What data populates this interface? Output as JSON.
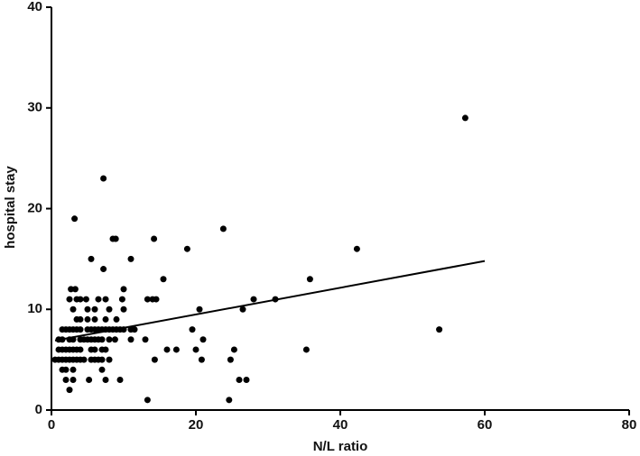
{
  "chart_data": {
    "type": "scatter",
    "xlabel": "N/L ratio",
    "ylabel": "hospital stay",
    "xlim": [
      0,
      80
    ],
    "xticks": [
      0,
      20,
      40,
      60,
      80
    ],
    "ylim": [
      0,
      40
    ],
    "yticks": [
      0,
      10,
      20,
      30,
      40
    ],
    "grid": false,
    "color": "#000000",
    "x": [
      57.3,
      7.2,
      3.2,
      23.8,
      8.5,
      8.9,
      14.2,
      18.8,
      42.3,
      5.5,
      11,
      7.2,
      15.5,
      35.8,
      10,
      31,
      28,
      13.3,
      14,
      14.5,
      20.5,
      26.5,
      19.5,
      53.7,
      21,
      13,
      35.3,
      25.3,
      20,
      16,
      17.3,
      24.8,
      20.8,
      14.3,
      26,
      27,
      13.3,
      24.6,
      2.7,
      3.3,
      2.5,
      3.5,
      4,
      4.8,
      6.5,
      7.5,
      9.8,
      3,
      5,
      6,
      8,
      10,
      3.5,
      4,
      5,
      6,
      7.5,
      9,
      1.5,
      2,
      2.5,
      3,
      3.5,
      4,
      5,
      5.5,
      6,
      6.5,
      7,
      7.5,
      8,
      8.5,
      9,
      9.5,
      10,
      11,
      11.5,
      1,
      1.5,
      2.5,
      3,
      4,
      4.5,
      5,
      5.5,
      6,
      6.5,
      7,
      8,
      8.8,
      11,
      1,
      1.5,
      2,
      2.5,
      3,
      3.5,
      4,
      5.5,
      6,
      7,
      7.5,
      0.5,
      1,
      1.5,
      2,
      2.5,
      3,
      3.5,
      4,
      4.5,
      5.5,
      6,
      6.5,
      7,
      8,
      1.5,
      2,
      3,
      7,
      2,
      3,
      5.2,
      7.5,
      9.5,
      2.5
    ],
    "values": [
      29,
      23,
      19,
      18,
      17,
      17,
      17,
      16,
      16,
      15,
      15,
      14,
      13,
      13,
      12,
      11,
      11,
      11,
      11,
      11,
      10,
      10,
      8,
      8,
      7,
      7,
      6,
      6,
      6,
      6,
      6,
      5,
      5,
      5,
      3,
      3,
      1,
      1,
      12,
      12,
      11,
      11,
      11,
      11,
      11,
      11,
      11,
      10,
      10,
      10,
      10,
      10,
      9,
      9,
      9,
      9,
      9,
      9,
      8,
      8,
      8,
      8,
      8,
      8,
      8,
      8,
      8,
      8,
      8,
      8,
      8,
      8,
      8,
      8,
      8,
      8,
      8,
      7,
      7,
      7,
      7,
      7,
      7,
      7,
      7,
      7,
      7,
      7,
      7,
      7,
      7,
      6,
      6,
      6,
      6,
      6,
      6,
      6,
      6,
      6,
      6,
      6,
      5,
      5,
      5,
      5,
      5,
      5,
      5,
      5,
      5,
      5,
      5,
      5,
      5,
      5,
      4,
      4,
      4,
      4,
      3,
      3,
      3,
      3,
      3,
      2
    ],
    "line": {
      "x": [
        0.5,
        60
      ],
      "values": [
        6.9,
        14.8
      ]
    }
  }
}
